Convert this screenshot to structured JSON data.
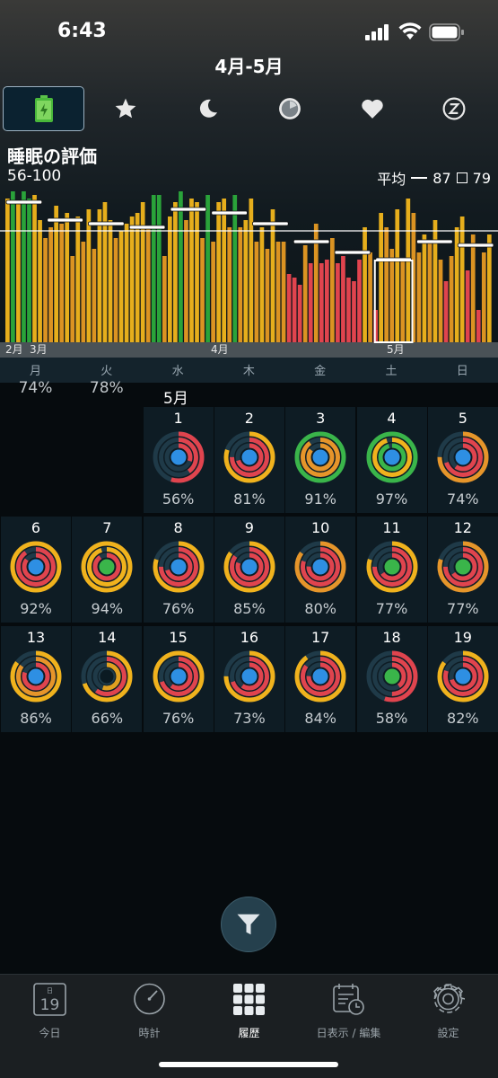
{
  "status_bar": {
    "time": "6:43"
  },
  "header": {
    "title": "4月-5月"
  },
  "tabs": [
    {
      "icon": "battery-icon",
      "selected": true
    },
    {
      "icon": "star-icon"
    },
    {
      "icon": "moon-icon"
    },
    {
      "icon": "clock-icon"
    },
    {
      "icon": "heart-icon"
    },
    {
      "icon": "z-icon"
    }
  ],
  "metric": {
    "title": "睡眠の評価",
    "range": "56-100",
    "avg_label": "平均",
    "avg_value": "87",
    "box_value": "79"
  },
  "chart_data": {
    "type": "bar",
    "ylim": [
      56,
      100
    ],
    "x_labels": [
      "2月",
      "3月",
      "4月",
      "5月"
    ],
    "values": [
      96,
      98,
      95,
      98,
      96,
      97,
      90,
      85,
      88,
      94,
      89,
      92,
      80,
      91,
      84,
      93,
      82,
      93,
      95,
      90,
      85,
      87,
      89,
      91,
      92,
      95,
      88,
      97,
      97,
      80,
      91,
      95,
      98,
      90,
      96,
      95,
      85,
      97,
      84,
      95,
      96,
      88,
      97,
      88,
      90,
      96,
      84,
      88,
      82,
      93,
      84,
      84,
      75,
      74,
      72,
      83,
      78,
      89,
      78,
      79,
      85,
      78,
      80,
      74,
      73,
      79,
      88,
      81,
      65,
      92,
      88,
      82,
      93,
      79,
      96,
      92,
      81,
      86,
      84,
      90,
      79,
      73,
      80,
      88,
      91,
      76,
      86,
      65,
      81,
      86
    ],
    "colors": [
      "y",
      "g",
      "y",
      "g",
      "g",
      "y",
      "y",
      "o",
      "o",
      "y",
      "o",
      "y",
      "o",
      "y",
      "o",
      "y",
      "o",
      "y",
      "y",
      "y",
      "o",
      "y",
      "y",
      "y",
      "y",
      "y",
      "o",
      "g",
      "g",
      "o",
      "y",
      "y",
      "g",
      "o",
      "y",
      "y",
      "o",
      "g",
      "o",
      "y",
      "y",
      "o",
      "g",
      "o",
      "y",
      "y",
      "o",
      "y",
      "o",
      "y",
      "o",
      "o",
      "r",
      "r",
      "r",
      "o",
      "r",
      "o",
      "r",
      "r",
      "o",
      "r",
      "r",
      "r",
      "r",
      "r",
      "y",
      "o",
      "r",
      "y",
      "o",
      "o",
      "y",
      "o",
      "y",
      "o",
      "o",
      "y",
      "o",
      "y",
      "o",
      "r",
      "o",
      "y",
      "y",
      "r",
      "o",
      "r",
      "o",
      "y"
    ],
    "week_averages": [
      95,
      90,
      89,
      88,
      93,
      92,
      89,
      84,
      81,
      79,
      84,
      83
    ],
    "overall_average": 87,
    "selected_week_index": 9,
    "palette": {
      "g": "#2aa33a",
      "y": "#e6ae1c",
      "o": "#db9322",
      "r": "#e0444e"
    }
  },
  "weekdays": [
    "月",
    "火",
    "水",
    "木",
    "金",
    "土",
    "日"
  ],
  "prev_week": [
    {
      "col": 0,
      "pct": "74%"
    },
    {
      "col": 1,
      "pct": "78%"
    }
  ],
  "calendar": {
    "month_label": "5月",
    "days": [
      {
        "day": "1",
        "pct": "56%",
        "rings": [
          [
            "#e0444e",
            0.55
          ],
          [
            "#e0444e",
            0.4
          ],
          [
            "#e0444e",
            0.3
          ]
        ],
        "center": "#2e8fe3"
      },
      {
        "day": "2",
        "pct": "81%",
        "rings": [
          [
            "#f0b21d",
            0.8
          ],
          [
            "#e0444e",
            0.75
          ],
          [
            "#e0444e",
            0.7
          ]
        ],
        "center": "#2e8fe3"
      },
      {
        "day": "3",
        "pct": "91%",
        "rings": [
          [
            "#3ab54a",
            1.0
          ],
          [
            "#e6952a",
            0.9
          ],
          [
            "#e6952a",
            0.85
          ]
        ],
        "center": "#2e8fe3"
      },
      {
        "day": "4",
        "pct": "97%",
        "rings": [
          [
            "#3ab54a",
            1.0
          ],
          [
            "#f0b21d",
            0.95
          ],
          [
            "#3ab54a",
            0.95
          ]
        ],
        "center": "#2e8fe3"
      },
      {
        "day": "5",
        "pct": "74%",
        "rings": [
          [
            "#e6952a",
            0.75
          ],
          [
            "#e0444e",
            0.7
          ],
          [
            "#e0444e",
            0.6
          ]
        ],
        "center": "#2e8fe3"
      },
      {
        "day": "6",
        "pct": "92%",
        "rings": [
          [
            "#f0b21d",
            1.0
          ],
          [
            "#e0444e",
            0.9
          ],
          [
            "#e0444e",
            0.85
          ]
        ],
        "center": "#2e8fe3"
      },
      {
        "day": "7",
        "pct": "94%",
        "rings": [
          [
            "#f0b21d",
            1.0
          ],
          [
            "#f0b21d",
            0.95
          ],
          [
            "#e0444e",
            0.9
          ]
        ],
        "center": "#3ab54a"
      },
      {
        "day": "8",
        "pct": "76%",
        "rings": [
          [
            "#f0b21d",
            0.8
          ],
          [
            "#e0444e",
            0.75
          ],
          [
            "#e0444e",
            0.7
          ]
        ],
        "center": "#2e8fe3"
      },
      {
        "day": "9",
        "pct": "85%",
        "rings": [
          [
            "#f0b21d",
            0.85
          ],
          [
            "#e0444e",
            0.85
          ],
          [
            "#e0444e",
            0.8
          ]
        ],
        "center": "#2e8fe3"
      },
      {
        "day": "10",
        "pct": "80%",
        "rings": [
          [
            "#e6952a",
            0.85
          ],
          [
            "#e0444e",
            0.8
          ],
          [
            "#e0444e",
            0.75
          ]
        ],
        "center": "#2e8fe3"
      },
      {
        "day": "11",
        "pct": "77%",
        "rings": [
          [
            "#f0b21d",
            0.8
          ],
          [
            "#e0444e",
            0.75
          ],
          [
            "#e0444e",
            0.65
          ]
        ],
        "center": "#3ab54a"
      },
      {
        "day": "12",
        "pct": "77%",
        "rings": [
          [
            "#e6952a",
            0.8
          ],
          [
            "#e0444e",
            0.75
          ],
          [
            "#e0444e",
            0.65
          ]
        ],
        "center": "#3ab54a"
      },
      {
        "day": "13",
        "pct": "86%",
        "rings": [
          [
            "#f0b21d",
            0.85
          ],
          [
            "#e6952a",
            0.85
          ],
          [
            "#e0444e",
            0.8
          ]
        ],
        "center": "#2e8fe3"
      },
      {
        "day": "14",
        "pct": "66%",
        "rings": [
          [
            "#f0b21d",
            0.7
          ],
          [
            "#e0444e",
            0.6
          ],
          [
            "#e0a020",
            0.55
          ]
        ],
        "center": "#0b1a22"
      },
      {
        "day": "15",
        "pct": "76%",
        "rings": [
          [
            "#f0b21d",
            1.0
          ],
          [
            "#e0444e",
            0.7
          ],
          [
            "#e0444e",
            0.6
          ]
        ],
        "center": "#2e8fe3"
      },
      {
        "day": "16",
        "pct": "73%",
        "rings": [
          [
            "#f0b21d",
            0.75
          ],
          [
            "#e0444e",
            0.7
          ],
          [
            "#e0444e",
            0.6
          ]
        ],
        "center": "#2e8fe3"
      },
      {
        "day": "17",
        "pct": "84%",
        "rings": [
          [
            "#f0b21d",
            0.9
          ],
          [
            "#e0444e",
            0.85
          ],
          [
            "#e0444e",
            0.75
          ]
        ],
        "center": "#2e8fe3"
      },
      {
        "day": "18",
        "pct": "58%",
        "rings": [
          [
            "#e0444e",
            0.55
          ],
          [
            "#e0444e",
            0.5
          ],
          [
            "#e0444e",
            0.4
          ]
        ],
        "center": "#3ab54a"
      },
      {
        "day": "19",
        "pct": "82%",
        "rings": [
          [
            "#f0b21d",
            0.85
          ],
          [
            "#e0444e",
            0.8
          ],
          [
            "#e0444e",
            0.7
          ]
        ],
        "center": "#2e8fe3"
      }
    ]
  },
  "tabbar": {
    "calendar_icon_text": "日",
    "calendar_icon_day": "19",
    "items": [
      {
        "label": "今日",
        "icon": "calendar-day-icon"
      },
      {
        "label": "時計",
        "icon": "clock-icon"
      },
      {
        "label": "履歴",
        "icon": "grid-icon",
        "selected": true
      },
      {
        "label": "日表示 / 編集",
        "icon": "calendar-edit-icon"
      },
      {
        "label": "設定",
        "icon": "gear-icon"
      }
    ]
  }
}
